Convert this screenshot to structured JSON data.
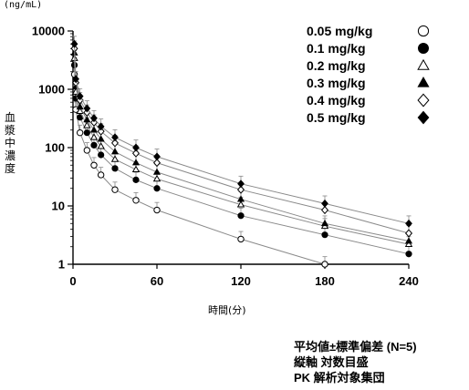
{
  "chart_data": {
    "type": "line",
    "y_unit": "(ng/mL)",
    "ylabel": "血漿中濃度",
    "xlabel": "時間(分)",
    "yscale": "log",
    "ylim": [
      1,
      10000
    ],
    "xlim": [
      0,
      240
    ],
    "xticks": [
      0,
      60,
      120,
      180,
      240
    ],
    "yticks": [
      "1",
      "10",
      "100",
      "1000",
      "10000"
    ],
    "x": [
      1,
      2,
      5,
      10,
      15,
      20,
      30,
      45,
      60,
      120,
      180,
      240
    ],
    "series": [
      {
        "name": "0.05 mg/kg",
        "marker": "circle-open",
        "values": [
          1800,
          450,
          180,
          90,
          50,
          34,
          19,
          12.5,
          8.5,
          2.7,
          1.0,
          null
        ]
      },
      {
        "name": "0.1 mg/kg",
        "marker": "circle-filled",
        "values": [
          2600,
          700,
          330,
          180,
          110,
          75,
          44,
          28,
          20,
          6.8,
          3.2,
          1.5
        ]
      },
      {
        "name": "0.2 mg/kg",
        "marker": "triangle-open",
        "values": [
          3400,
          900,
          420,
          240,
          150,
          105,
          63,
          42,
          29,
          10.5,
          4.5,
          2.2
        ]
      },
      {
        "name": "0.3 mg/kg",
        "marker": "triangle-filled",
        "values": [
          4200,
          1100,
          500,
          300,
          200,
          140,
          85,
          55,
          38,
          13,
          5.0,
          2.5
        ]
      },
      {
        "name": "0.4 mg/kg",
        "marker": "diamond-open",
        "values": [
          5000,
          1300,
          650,
          400,
          270,
          190,
          120,
          80,
          55,
          19,
          8.5,
          3.4
        ]
      },
      {
        "name": "0.5 mg/kg",
        "marker": "diamond-filled",
        "values": [
          6000,
          1500,
          760,
          470,
          320,
          230,
          150,
          100,
          70,
          24,
          11,
          5.0
        ]
      }
    ],
    "error_bars": "mean ± SD",
    "notes": [
      "平均値±標準偏差 (N=5)",
      "縦軸 対数目盛",
      "PK 解析対象集団"
    ]
  }
}
